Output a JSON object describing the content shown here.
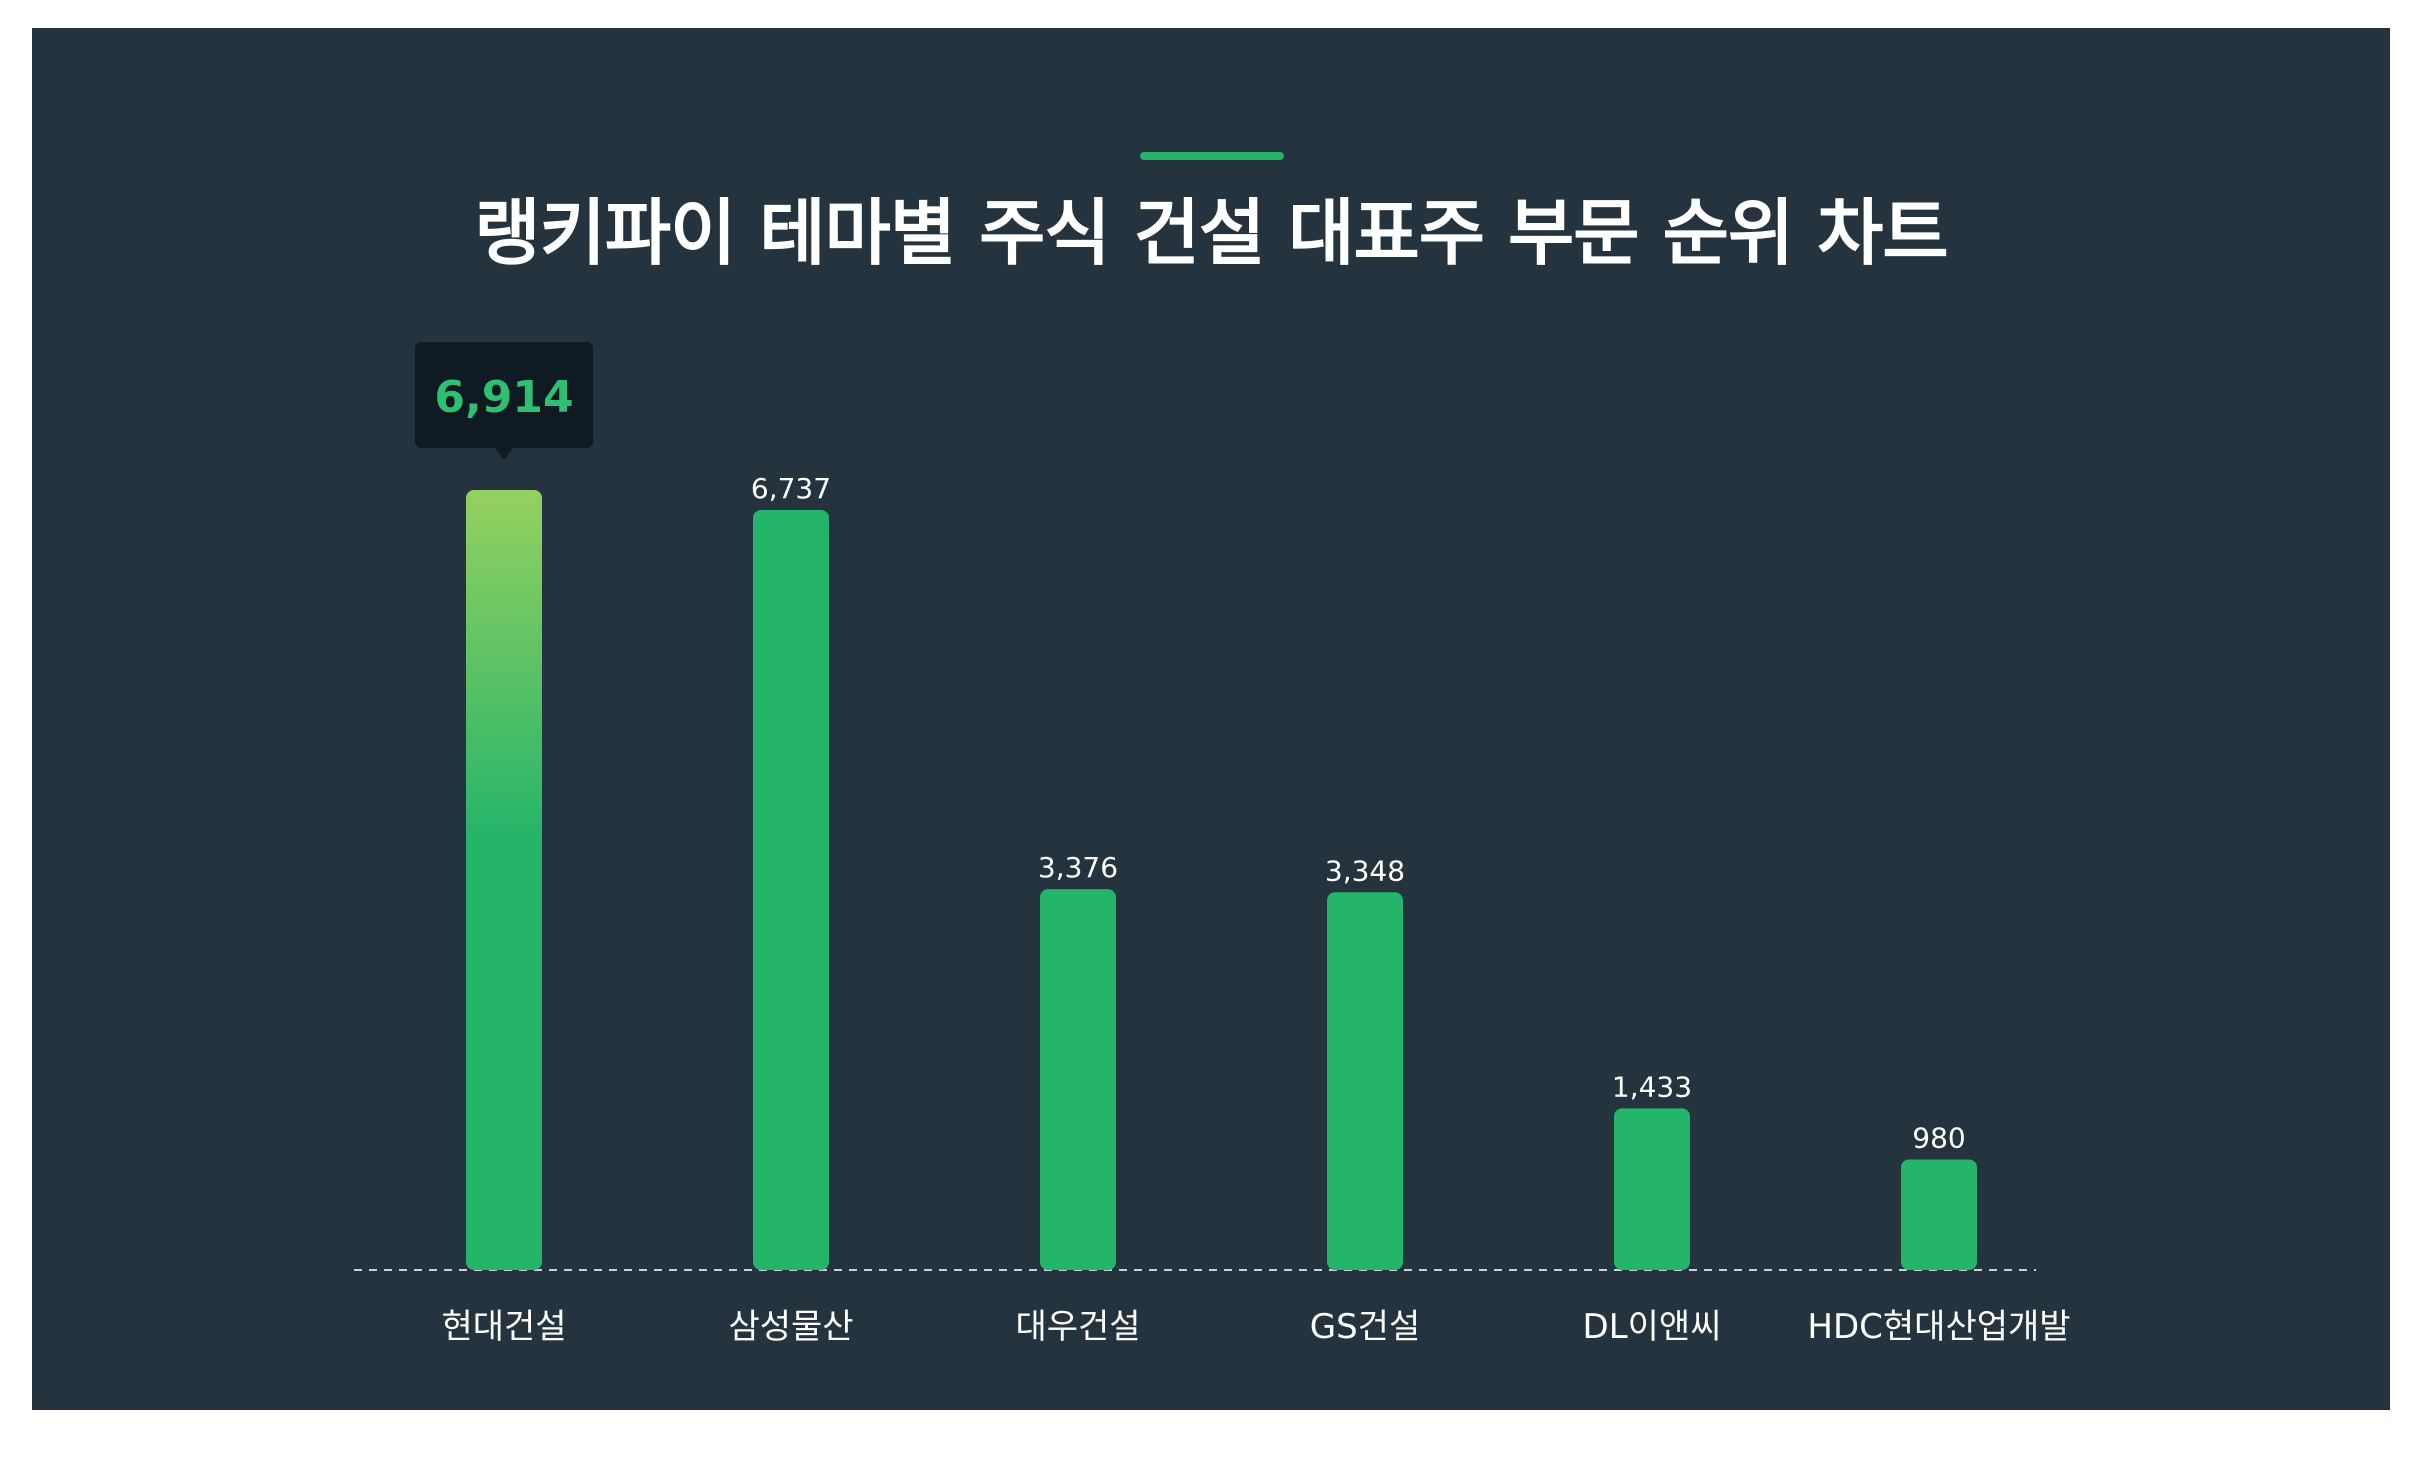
{
  "chart_data": {
    "type": "bar",
    "title": "랭키파이 테마별 주식 건설 대표주 부문 순위 차트",
    "categories": [
      "현대건설",
      "삼성물산",
      "대우건설",
      "GS건설",
      "DL이앤씨",
      "HDC현대산업개발"
    ],
    "values": [
      6914,
      6737,
      3376,
      3348,
      1433,
      980
    ],
    "value_labels": [
      "6,914",
      "6,737",
      "3,376",
      "3,348",
      "1,433",
      "980"
    ],
    "highlight": {
      "index": 0,
      "label": "6,914"
    },
    "xlabel": "",
    "ylabel": "",
    "ylim": [
      0,
      6914
    ],
    "grid": false,
    "legend": "none",
    "colors": {
      "background": "#25333f",
      "bar": "#24b46a",
      "highlight_top": "#94d160",
      "accent": "#24b46a",
      "tooltip_bg": "#0f1a22",
      "tooltip_text": "#2fbf71",
      "text": "#ffffff",
      "baseline": "#c8d0d6"
    }
  }
}
